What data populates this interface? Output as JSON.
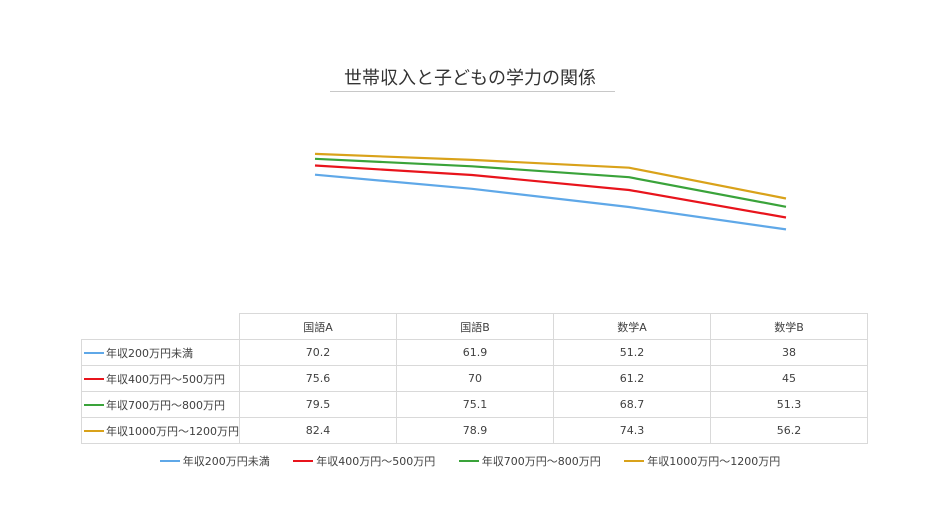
{
  "chart_data": {
    "type": "line",
    "title": "世帯収入と子どもの学力の関係",
    "categories": [
      "国語A",
      "国語B",
      "数学A",
      "数学B"
    ],
    "series": [
      {
        "name": "年収200万円未満",
        "color": "#5fa8e8",
        "values": [
          70.2,
          61.9,
          51.2,
          38
        ]
      },
      {
        "name": "年収400万円～500万円",
        "color": "#e8141c",
        "values": [
          75.6,
          70,
          61.2,
          45
        ]
      },
      {
        "name": "年収700万円～800万円",
        "color": "#3aa33a",
        "values": [
          79.5,
          75.1,
          68.7,
          51.3
        ]
      },
      {
        "name": "年収1000万円～1200万円",
        "color": "#d9a21a",
        "values": [
          82.4,
          78.9,
          74.3,
          56.2
        ]
      }
    ],
    "legend_position": "bottom",
    "data_table": true,
    "grid": false
  }
}
